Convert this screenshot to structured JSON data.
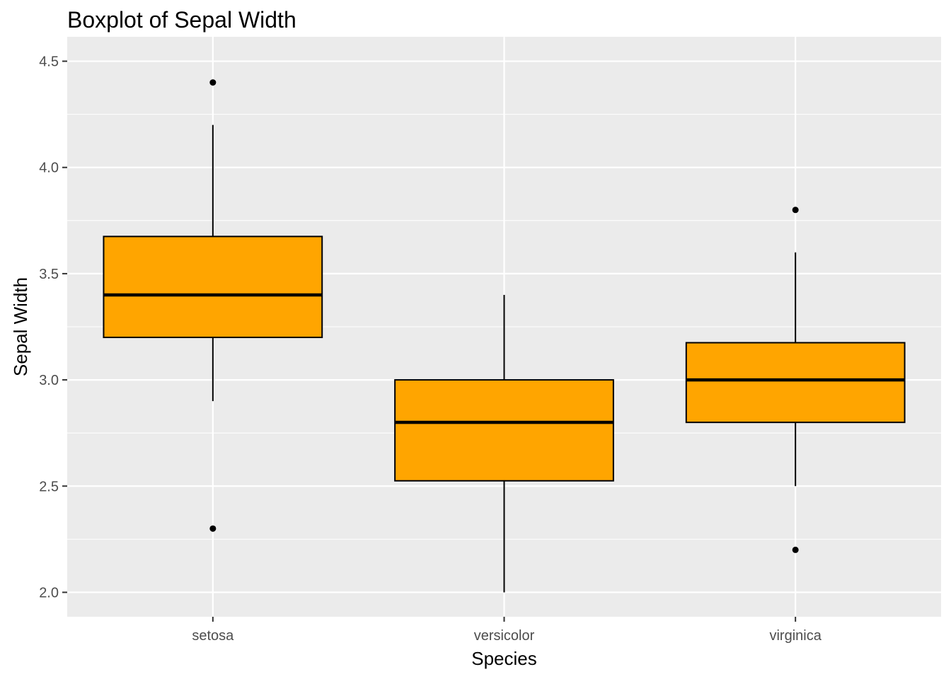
{
  "chart_data": {
    "type": "boxplot",
    "title": "Boxplot of Sepal Width",
    "xlabel": "Species",
    "ylabel": "Sepal Width",
    "categories": [
      "setosa",
      "versicolor",
      "virginica"
    ],
    "ylim": [
      1.885,
      4.615
    ],
    "yticks": [
      2.0,
      2.5,
      3.0,
      3.5,
      4.0,
      4.5
    ],
    "ytick_labels": [
      "2.0",
      "2.5",
      "3.0",
      "3.5",
      "4.0",
      "4.5"
    ],
    "grid": true,
    "legend": "none",
    "colors": {
      "panel": "#ebebeb",
      "grid": "#ffffff",
      "box_fill": "#ffa500",
      "box_outline": "#000000"
    },
    "boxes": [
      {
        "category": "setosa",
        "whisker_low": 2.9,
        "q1": 3.2,
        "median": 3.4,
        "q3": 3.675,
        "whisker_high": 4.2,
        "outliers": [
          4.4,
          2.3
        ]
      },
      {
        "category": "versicolor",
        "whisker_low": 2.0,
        "q1": 2.525,
        "median": 2.8,
        "q3": 3.0,
        "whisker_high": 3.4,
        "outliers": []
      },
      {
        "category": "virginica",
        "whisker_low": 2.5,
        "q1": 2.8,
        "median": 3.0,
        "q3": 3.175,
        "whisker_high": 3.6,
        "outliers": [
          3.8,
          2.2
        ]
      }
    ]
  }
}
